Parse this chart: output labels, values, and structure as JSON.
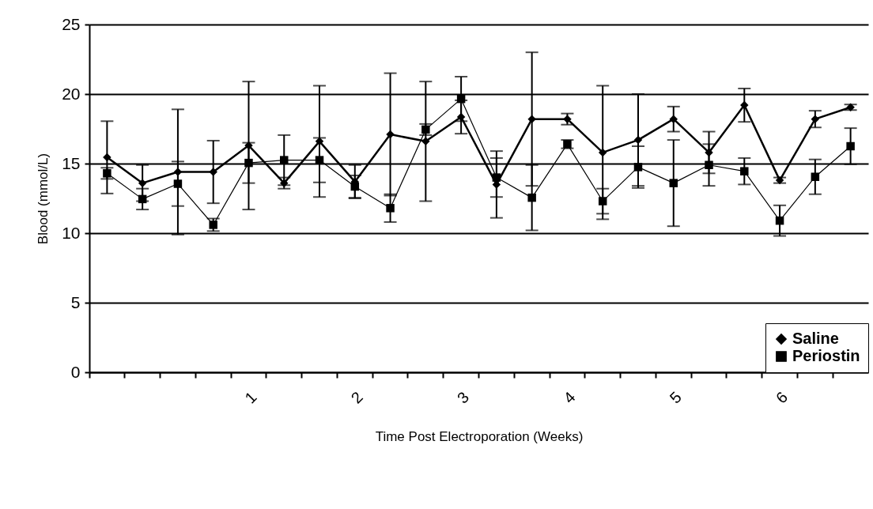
{
  "chart_data": {
    "type": "line",
    "xlabel": "Time Post Electroporation (Weeks)",
    "ylabel": "Blood (mmol/L)",
    "categories": [
      null,
      null,
      null,
      null,
      "1",
      null,
      null,
      "2",
      null,
      null,
      "3",
      null,
      null,
      "4",
      null,
      null,
      "5",
      null,
      null,
      "6",
      null,
      null
    ],
    "series": [
      {
        "name": "Saline",
        "color": "#000000",
        "marker": "diamond",
        "values": [
          15.45,
          13.6,
          14.4,
          14.4,
          16.3,
          13.6,
          16.6,
          13.7,
          17.1,
          16.6,
          18.35,
          13.5,
          18.2,
          18.2,
          15.8,
          16.7,
          18.2,
          15.8,
          19.2,
          13.8,
          18.2,
          19.05
        ],
        "errors": [
          2.6,
          1.3,
          4.5,
          2.25,
          4.6,
          0.4,
          4.0,
          1.2,
          4.4,
          4.3,
          1.2,
          2.4,
          4.8,
          0.4,
          4.8,
          3.3,
          0.9,
          1.5,
          1.2,
          0.2,
          0.6,
          0.2
        ]
      },
      {
        "name": "Periostin",
        "color": "#000000",
        "marker": "square",
        "values": [
          14.3,
          12.45,
          13.55,
          10.6,
          15.05,
          15.25,
          15.25,
          13.35,
          11.8,
          17.45,
          19.65,
          14.0,
          12.55,
          16.4,
          12.3,
          14.75,
          13.6,
          14.9,
          14.45,
          10.9,
          14.05,
          16.25
        ],
        "errors": [
          0.4,
          0.75,
          1.6,
          0.45,
          1.45,
          1.8,
          1.6,
          0.8,
          1.0,
          0.4,
          1.6,
          1.4,
          2.35,
          0.3,
          0.9,
          1.5,
          3.1,
          1.5,
          0.95,
          1.1,
          1.25,
          1.3
        ]
      }
    ],
    "ylim": [
      0,
      25
    ],
    "yticks": [
      0,
      5,
      10,
      15,
      20,
      25
    ],
    "grid": "y",
    "legend": "bottom right"
  }
}
